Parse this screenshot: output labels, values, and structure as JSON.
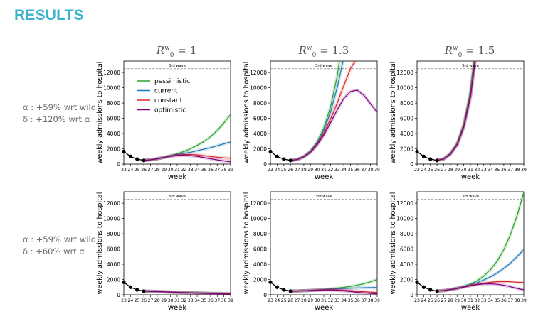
{
  "header": {
    "title": "RESULTS"
  },
  "columns": [
    {
      "r0_symbol": "R",
      "r0_sub": "0",
      "r0_sup": "w",
      "value": "= 1"
    },
    {
      "r0_symbol": "R",
      "r0_sub": "0",
      "r0_sup": "w",
      "value": "= 1.3"
    },
    {
      "r0_symbol": "R",
      "r0_sub": "0",
      "r0_sup": "w",
      "value": "= 1.5"
    }
  ],
  "rows": [
    {
      "line1": "α : +59% wrt wild",
      "line2": "δ : +120% wrt α"
    },
    {
      "line1": "α : +59% wrt wild",
      "line2": "δ : +60% wrt α"
    }
  ],
  "colors": {
    "pessimistic": "#2ca02c",
    "current": "#1f77b4",
    "constant": "#d62728",
    "optimistic": "#800080",
    "observed": "#000000",
    "third_wave_line": "#808080",
    "title": "#3bb3cf"
  },
  "chart_data": [
    {
      "type": "line",
      "row": 0,
      "col": 0,
      "xlabel": "week",
      "ylabel": "weekly admissions to hospital",
      "xlim": [
        23,
        39
      ],
      "ylim": [
        0,
        13500
      ],
      "xticks": [
        23,
        24,
        25,
        26,
        27,
        28,
        29,
        30,
        31,
        32,
        33,
        34,
        35,
        36,
        37,
        38,
        39
      ],
      "yticks": [
        0,
        2000,
        4000,
        6000,
        8000,
        10000,
        12000
      ],
      "reference_line": {
        "label": "3rd wave",
        "y": 12500
      },
      "legend": {
        "position": "upper-left",
        "entries": [
          "pessimistic",
          "current",
          "constant",
          "optimistic"
        ]
      },
      "observed": {
        "x": [
          23,
          24,
          25,
          26
        ],
        "y": [
          1650,
          1000,
          650,
          480
        ]
      },
      "series": [
        {
          "name": "pessimistic",
          "x": [
            26,
            27,
            28,
            29,
            30,
            31,
            32,
            33,
            34,
            35,
            36,
            37,
            38,
            39
          ],
          "y": [
            480,
            560,
            700,
            880,
            1100,
            1350,
            1650,
            2000,
            2450,
            2950,
            3600,
            4400,
            5400,
            6500
          ]
        },
        {
          "name": "current",
          "x": [
            26,
            27,
            28,
            29,
            30,
            31,
            32,
            33,
            34,
            35,
            36,
            37,
            38,
            39
          ],
          "y": [
            480,
            560,
            700,
            880,
            1080,
            1250,
            1400,
            1550,
            1750,
            1950,
            2150,
            2400,
            2650,
            2900
          ]
        },
        {
          "name": "constant",
          "x": [
            26,
            27,
            28,
            29,
            30,
            31,
            32,
            33,
            34,
            35,
            36,
            37,
            38,
            39
          ],
          "y": [
            480,
            560,
            700,
            870,
            1050,
            1180,
            1250,
            1250,
            1200,
            1100,
            1000,
            900,
            820,
            750
          ]
        },
        {
          "name": "optimistic",
          "x": [
            26,
            27,
            28,
            29,
            30,
            31,
            32,
            33,
            34,
            35,
            36,
            37,
            38,
            39
          ],
          "y": [
            480,
            560,
            690,
            860,
            1020,
            1120,
            1150,
            1100,
            1000,
            850,
            700,
            550,
            420,
            300
          ]
        }
      ]
    },
    {
      "type": "line",
      "row": 0,
      "col": 1,
      "xlabel": "week",
      "ylabel": "weekly admissions to hospital",
      "xlim": [
        23,
        39
      ],
      "ylim": [
        0,
        13500
      ],
      "xticks": [
        23,
        24,
        25,
        26,
        27,
        28,
        29,
        30,
        31,
        32,
        33,
        34,
        35,
        36,
        37,
        38,
        39
      ],
      "yticks": [
        0,
        2000,
        4000,
        6000,
        8000,
        10000,
        12000
      ],
      "reference_line": {
        "label": "3rd wave",
        "y": 12500
      },
      "observed": {
        "x": [
          23,
          24,
          25,
          26
        ],
        "y": [
          1650,
          1000,
          650,
          480
        ]
      },
      "series": [
        {
          "name": "pessimistic",
          "x": [
            26,
            27,
            28,
            29,
            30,
            31,
            32,
            33,
            33.5
          ],
          "y": [
            480,
            600,
            1000,
            1700,
            2900,
            4700,
            7500,
            11500,
            14500
          ]
        },
        {
          "name": "current",
          "x": [
            26,
            27,
            28,
            29,
            30,
            31,
            32,
            33,
            34
          ],
          "y": [
            480,
            600,
            980,
            1650,
            2750,
            4400,
            6800,
            10000,
            14000
          ]
        },
        {
          "name": "constant",
          "x": [
            26,
            27,
            28,
            29,
            30,
            31,
            32,
            33,
            34,
            35,
            36
          ],
          "y": [
            480,
            600,
            960,
            1600,
            2600,
            4000,
            5900,
            8000,
            10300,
            12500,
            14000
          ]
        },
        {
          "name": "optimistic",
          "x": [
            26,
            27,
            28,
            29,
            30,
            31,
            32,
            33,
            34,
            35,
            36,
            37,
            38,
            39
          ],
          "y": [
            480,
            590,
            950,
            1550,
            2500,
            3800,
            5400,
            7100,
            8600,
            9500,
            9700,
            9000,
            7900,
            6800
          ]
        }
      ]
    },
    {
      "type": "line",
      "row": 0,
      "col": 2,
      "xlabel": "week",
      "ylabel": "weekly admissions to hospital",
      "xlim": [
        23,
        39
      ],
      "ylim": [
        0,
        13500
      ],
      "xticks": [
        23,
        24,
        25,
        26,
        27,
        28,
        29,
        30,
        31,
        32,
        33,
        34,
        35,
        36,
        37,
        38,
        39
      ],
      "yticks": [
        0,
        2000,
        4000,
        6000,
        8000,
        10000,
        12000
      ],
      "reference_line": {
        "label": "3rd wave",
        "y": 12500
      },
      "observed": {
        "x": [
          23,
          24,
          25,
          26
        ],
        "y": [
          1650,
          1000,
          650,
          480
        ]
      },
      "series": [
        {
          "name": "pessimistic",
          "x": [
            26,
            27,
            28,
            29,
            30,
            31,
            31.6
          ],
          "y": [
            480,
            700,
            1400,
            2700,
            5200,
            9500,
            14000
          ]
        },
        {
          "name": "current",
          "x": [
            26,
            27,
            28,
            29,
            30,
            31,
            31.7
          ],
          "y": [
            480,
            690,
            1350,
            2600,
            5000,
            9100,
            14000
          ]
        },
        {
          "name": "constant",
          "x": [
            26,
            27,
            28,
            29,
            30,
            31,
            31.75
          ],
          "y": [
            480,
            680,
            1330,
            2550,
            4900,
            8900,
            14000
          ]
        },
        {
          "name": "optimistic",
          "x": [
            26,
            27,
            28,
            29,
            30,
            31,
            31.8
          ],
          "y": [
            480,
            670,
            1300,
            2500,
            4800,
            8700,
            14000
          ]
        }
      ]
    },
    {
      "type": "line",
      "row": 1,
      "col": 0,
      "xlabel": "week",
      "ylabel": "weekly admissions to hospital",
      "xlim": [
        23,
        39
      ],
      "ylim": [
        0,
        13500
      ],
      "xticks": [
        23,
        24,
        25,
        26,
        27,
        28,
        29,
        30,
        31,
        32,
        33,
        34,
        35,
        36,
        37,
        38,
        39
      ],
      "yticks": [
        0,
        2000,
        4000,
        6000,
        8000,
        10000,
        12000
      ],
      "reference_line": {
        "label": "3rd wave",
        "y": 12500
      },
      "observed": {
        "x": [
          23,
          24,
          25,
          26
        ],
        "y": [
          1650,
          1000,
          650,
          480
        ]
      },
      "series": [
        {
          "name": "pessimistic",
          "x": [
            26,
            28,
            30,
            32,
            34,
            36,
            38,
            39
          ],
          "y": [
            480,
            430,
            370,
            310,
            260,
            220,
            190,
            180
          ]
        },
        {
          "name": "current",
          "x": [
            26,
            28,
            30,
            32,
            34,
            36,
            38,
            39
          ],
          "y": [
            480,
            430,
            360,
            300,
            250,
            200,
            160,
            150
          ]
        },
        {
          "name": "constant",
          "x": [
            26,
            28,
            30,
            32,
            34,
            36,
            38,
            39
          ],
          "y": [
            480,
            430,
            355,
            290,
            230,
            180,
            140,
            120
          ]
        },
        {
          "name": "optimistic",
          "x": [
            26,
            28,
            30,
            32,
            34,
            36,
            38,
            39
          ],
          "y": [
            480,
            420,
            350,
            280,
            210,
            150,
            100,
            80
          ]
        }
      ]
    },
    {
      "type": "line",
      "row": 1,
      "col": 1,
      "xlabel": "week",
      "ylabel": "weekly admissions to hospital",
      "xlim": [
        23,
        39
      ],
      "ylim": [
        0,
        13500
      ],
      "xticks": [
        23,
        24,
        25,
        26,
        27,
        28,
        29,
        30,
        31,
        32,
        33,
        34,
        35,
        36,
        37,
        38,
        39
      ],
      "yticks": [
        0,
        2000,
        4000,
        6000,
        8000,
        10000,
        12000
      ],
      "reference_line": {
        "label": "3rd wave",
        "y": 12500
      },
      "observed": {
        "x": [
          23,
          24,
          25,
          26
        ],
        "y": [
          1650,
          1000,
          650,
          480
        ]
      },
      "series": [
        {
          "name": "pessimistic",
          "x": [
            26,
            27,
            28,
            29,
            30,
            31,
            32,
            33,
            34,
            35,
            36,
            37,
            38,
            39
          ],
          "y": [
            480,
            500,
            540,
            580,
            640,
            700,
            780,
            870,
            980,
            1100,
            1250,
            1450,
            1700,
            2000
          ]
        },
        {
          "name": "current",
          "x": [
            26,
            27,
            28,
            29,
            30,
            31,
            32,
            33,
            34,
            35,
            36,
            37,
            38,
            39
          ],
          "y": [
            480,
            500,
            540,
            580,
            630,
            680,
            730,
            780,
            820,
            860,
            890,
            920,
            940,
            960
          ]
        },
        {
          "name": "constant",
          "x": [
            26,
            27,
            28,
            29,
            30,
            31,
            32,
            33,
            34,
            35,
            36,
            37,
            38,
            39
          ],
          "y": [
            480,
            500,
            530,
            570,
            610,
            640,
            650,
            640,
            600,
            540,
            470,
            400,
            350,
            300
          ]
        },
        {
          "name": "optimistic",
          "x": [
            26,
            27,
            28,
            29,
            30,
            31,
            32,
            33,
            34,
            35,
            36,
            37,
            38,
            39
          ],
          "y": [
            480,
            500,
            530,
            560,
            600,
            620,
            620,
            590,
            520,
            430,
            330,
            250,
            180,
            130
          ]
        }
      ]
    },
    {
      "type": "line",
      "row": 1,
      "col": 2,
      "xlabel": "week",
      "ylabel": "weekly admissions to hospital",
      "xlim": [
        23,
        39
      ],
      "ylim": [
        0,
        13500
      ],
      "xticks": [
        23,
        24,
        25,
        26,
        27,
        28,
        29,
        30,
        31,
        32,
        33,
        34,
        35,
        36,
        37,
        38,
        39
      ],
      "yticks": [
        0,
        2000,
        4000,
        6000,
        8000,
        10000,
        12000
      ],
      "reference_line": {
        "label": "3rd wave",
        "y": 12500
      },
      "observed": {
        "x": [
          23,
          24,
          25,
          26
        ],
        "y": [
          1650,
          1000,
          650,
          480
        ]
      },
      "series": [
        {
          "name": "pessimistic",
          "x": [
            26,
            27,
            28,
            29,
            30,
            31,
            32,
            33,
            34,
            35,
            36,
            37,
            38,
            39
          ],
          "y": [
            480,
            560,
            700,
            880,
            1100,
            1400,
            1850,
            2450,
            3300,
            4400,
            5900,
            7900,
            10400,
            13400
          ]
        },
        {
          "name": "current",
          "x": [
            26,
            27,
            28,
            29,
            30,
            31,
            32,
            33,
            34,
            35,
            36,
            37,
            38,
            39
          ],
          "y": [
            480,
            560,
            690,
            860,
            1060,
            1300,
            1600,
            1950,
            2350,
            2850,
            3450,
            4150,
            5000,
            5900
          ]
        },
        {
          "name": "constant",
          "x": [
            26,
            27,
            28,
            29,
            30,
            31,
            32,
            33,
            34,
            35,
            36,
            37,
            38,
            39
          ],
          "y": [
            480,
            560,
            680,
            840,
            1020,
            1220,
            1390,
            1530,
            1640,
            1710,
            1730,
            1700,
            1650,
            1600
          ]
        },
        {
          "name": "optimistic",
          "x": [
            26,
            27,
            28,
            29,
            30,
            31,
            32,
            33,
            34,
            35,
            36,
            37,
            38,
            39
          ],
          "y": [
            480,
            560,
            680,
            830,
            1000,
            1180,
            1330,
            1420,
            1440,
            1380,
            1250,
            1050,
            840,
            650
          ]
        }
      ]
    }
  ]
}
